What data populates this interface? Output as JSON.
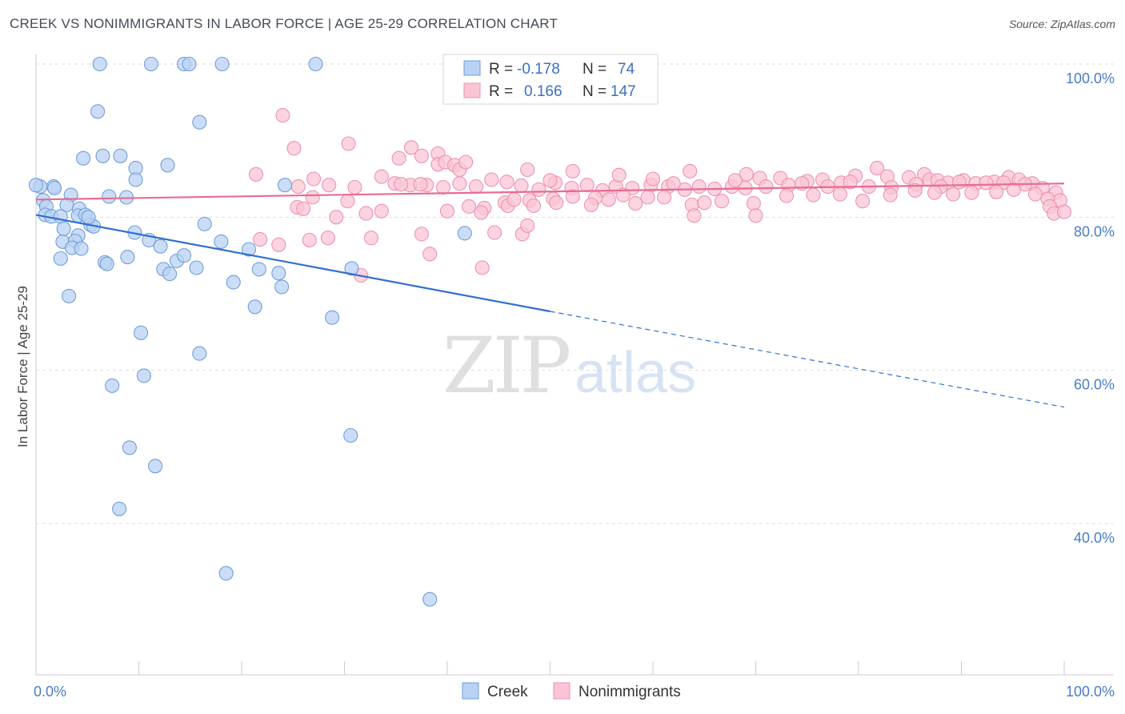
{
  "title": "CREEK VS NONIMMIGRANTS IN LABOR FORCE | AGE 25-29 CORRELATION CHART",
  "source": "Source: ZipAtlas.com",
  "watermark": {
    "zip": "ZIP",
    "atlas": "atlas"
  },
  "colors": {
    "creek_fill": "#b9d2f3",
    "creek_stroke": "#6f9fd8",
    "creek_line": "#2e6fd0",
    "non_fill": "#f9c5d5",
    "non_stroke": "#ee92ae",
    "non_line": "#e86b93",
    "axis_label": "#4a7cc9",
    "grid": "#dddddd"
  },
  "legend": {
    "creek": {
      "r_label": "R = ",
      "r_value": "-0.178",
      "n_label": "N = ",
      "n_value": "74"
    },
    "non": {
      "r_label": "R = ",
      "r_value": "0.166",
      "n_label": "N = ",
      "n_value": "147"
    }
  },
  "bottom_legend": {
    "creek": "Creek",
    "non": "Nonimmigrants"
  },
  "chart_data": {
    "type": "scatter",
    "title": "CREEK VS NONIMMIGRANTS IN LABOR FORCE | AGE 25-29 CORRELATION CHART",
    "xlabel": "",
    "ylabel": "In Labor Force | Age 25-29",
    "xlim": [
      0,
      100
    ],
    "ylim": [
      20,
      102
    ],
    "x_tick_labels": [
      {
        "value": 0,
        "label": "0.0%"
      },
      {
        "value": 100,
        "label": "100.0%"
      }
    ],
    "y_tick_labels": [
      {
        "value": 100,
        "label": "100.0%"
      },
      {
        "value": 80,
        "label": "80.0%"
      },
      {
        "value": 60,
        "label": "60.0%"
      },
      {
        "value": 40,
        "label": "40.0%"
      }
    ],
    "grid": true,
    "legend_position": "top-center",
    "series": [
      {
        "name": "Creek",
        "trend": {
          "x0": 0,
          "y0": 80.3,
          "x1": 50,
          "y1": 67.7,
          "dashed_to_x": 100,
          "dashed_to_y": 55.2
        },
        "points": [
          [
            6.2,
            100
          ],
          [
            11.2,
            100
          ],
          [
            14.4,
            100
          ],
          [
            14.9,
            100
          ],
          [
            18.1,
            100
          ],
          [
            27.2,
            100
          ],
          [
            6.0,
            93.8
          ],
          [
            15.9,
            92.4
          ],
          [
            4.6,
            87.7
          ],
          [
            6.5,
            88.0
          ],
          [
            8.2,
            88.0
          ],
          [
            12.8,
            86.8
          ],
          [
            9.7,
            86.4
          ],
          [
            9.7,
            84.9
          ],
          [
            0.4,
            84.0
          ],
          [
            1.7,
            84.0
          ],
          [
            1.8,
            83.8
          ],
          [
            3.4,
            82.9
          ],
          [
            7.1,
            82.7
          ],
          [
            8.8,
            82.6
          ],
          [
            24.2,
            84.2
          ],
          [
            0.7,
            82.2
          ],
          [
            1.0,
            81.4
          ],
          [
            3.0,
            81.6
          ],
          [
            4.2,
            81.1
          ],
          [
            0.9,
            80.3
          ],
          [
            1.5,
            80.1
          ],
          [
            2.4,
            80.1
          ],
          [
            4.1,
            80.2
          ],
          [
            4.8,
            80.3
          ],
          [
            5.3,
            79.0
          ],
          [
            5.6,
            78.8
          ],
          [
            16.4,
            79.1
          ],
          [
            41.7,
            77.9
          ],
          [
            4.1,
            77.6
          ],
          [
            2.6,
            76.8
          ],
          [
            3.8,
            76.9
          ],
          [
            11.0,
            77.0
          ],
          [
            3.5,
            76.0
          ],
          [
            4.4,
            75.9
          ],
          [
            20.7,
            75.8
          ],
          [
            2.4,
            74.6
          ],
          [
            6.7,
            74.1
          ],
          [
            8.9,
            74.8
          ],
          [
            12.4,
            73.2
          ],
          [
            13.7,
            74.3
          ],
          [
            14.4,
            75.0
          ],
          [
            15.6,
            73.4
          ],
          [
            6.9,
            73.9
          ],
          [
            13.0,
            72.6
          ],
          [
            21.7,
            73.2
          ],
          [
            23.6,
            72.7
          ],
          [
            30.7,
            73.3
          ],
          [
            19.2,
            71.5
          ],
          [
            23.9,
            70.9
          ],
          [
            3.2,
            69.7
          ],
          [
            21.3,
            68.3
          ],
          [
            28.8,
            66.9
          ],
          [
            10.2,
            64.9
          ],
          [
            15.9,
            62.2
          ],
          [
            10.5,
            59.3
          ],
          [
            7.4,
            58.0
          ],
          [
            30.6,
            51.5
          ],
          [
            9.1,
            49.9
          ],
          [
            11.6,
            47.5
          ],
          [
            8.1,
            41.9
          ],
          [
            18.5,
            33.5
          ],
          [
            38.3,
            30.1
          ],
          [
            0.0,
            84.2
          ],
          [
            5.1,
            80.0
          ],
          [
            9.6,
            78.0
          ],
          [
            12.1,
            76.2
          ],
          [
            2.7,
            78.5
          ],
          [
            18.0,
            76.8
          ]
        ]
      },
      {
        "name": "Nonimmigrants",
        "trend": {
          "x0": 0,
          "y0": 82.3,
          "x1": 100,
          "y1": 84.4
        },
        "points": [
          [
            24.0,
            93.3
          ],
          [
            25.1,
            89.0
          ],
          [
            30.4,
            89.6
          ],
          [
            35.3,
            87.7
          ],
          [
            36.5,
            89.1
          ],
          [
            37.5,
            88.0
          ],
          [
            39.1,
            88.3
          ],
          [
            39.1,
            86.9
          ],
          [
            39.8,
            87.2
          ],
          [
            40.7,
            86.8
          ],
          [
            41.2,
            86.2
          ],
          [
            41.8,
            87.2
          ],
          [
            47.8,
            86.2
          ],
          [
            52.2,
            86.0
          ],
          [
            63.6,
            86.0
          ],
          [
            69.1,
            85.6
          ],
          [
            70.4,
            85.1
          ],
          [
            81.8,
            86.4
          ],
          [
            86.4,
            85.6
          ],
          [
            94.6,
            85.2
          ],
          [
            82.8,
            85.3
          ],
          [
            79.7,
            85.4
          ],
          [
            84.9,
            85.2
          ],
          [
            72.4,
            85.1
          ],
          [
            75.0,
            84.7
          ],
          [
            76.5,
            84.9
          ],
          [
            78.3,
            84.5
          ],
          [
            86.9,
            84.9
          ],
          [
            87.7,
            84.8
          ],
          [
            88.7,
            84.5
          ],
          [
            90.2,
            84.8
          ],
          [
            91.4,
            84.4
          ],
          [
            93.2,
            84.6
          ],
          [
            95.6,
            84.9
          ],
          [
            96.9,
            84.4
          ],
          [
            97.9,
            83.8
          ],
          [
            99.2,
            83.2
          ],
          [
            99.6,
            82.2
          ],
          [
            98.4,
            82.4
          ],
          [
            96.2,
            84.3
          ],
          [
            94.1,
            84.5
          ],
          [
            92.4,
            84.5
          ],
          [
            89.8,
            84.6
          ],
          [
            88.0,
            84.0
          ],
          [
            85.6,
            84.3
          ],
          [
            83.2,
            83.9
          ],
          [
            81.0,
            84.0
          ],
          [
            79.2,
            84.6
          ],
          [
            77.0,
            84.0
          ],
          [
            74.5,
            84.4
          ],
          [
            73.2,
            84.2
          ],
          [
            71.0,
            84.0
          ],
          [
            69.0,
            83.8
          ],
          [
            67.7,
            84.0
          ],
          [
            66.0,
            83.7
          ],
          [
            64.5,
            84.0
          ],
          [
            63.1,
            83.6
          ],
          [
            61.5,
            84.0
          ],
          [
            59.8,
            84.2
          ],
          [
            58.0,
            83.8
          ],
          [
            56.4,
            84.0
          ],
          [
            55.1,
            83.5
          ],
          [
            53.6,
            84.2
          ],
          [
            52.1,
            83.8
          ],
          [
            50.5,
            84.5
          ],
          [
            48.9,
            83.6
          ],
          [
            47.2,
            84.1
          ],
          [
            45.8,
            84.6
          ],
          [
            44.3,
            84.9
          ],
          [
            42.8,
            84.0
          ],
          [
            41.2,
            84.4
          ],
          [
            39.6,
            83.9
          ],
          [
            38.0,
            84.2
          ],
          [
            36.4,
            84.2
          ],
          [
            34.9,
            84.4
          ],
          [
            33.6,
            85.3
          ],
          [
            31.0,
            83.9
          ],
          [
            28.5,
            84.2
          ],
          [
            27.0,
            85.0
          ],
          [
            25.5,
            84.0
          ],
          [
            59.5,
            82.6
          ],
          [
            57.1,
            82.9
          ],
          [
            54.4,
            82.5
          ],
          [
            52.2,
            82.7
          ],
          [
            50.3,
            82.4
          ],
          [
            48.0,
            82.2
          ],
          [
            45.6,
            81.9
          ],
          [
            43.6,
            81.2
          ],
          [
            45.9,
            81.5
          ],
          [
            46.5,
            82.3
          ],
          [
            48.4,
            81.5
          ],
          [
            50.6,
            81.9
          ],
          [
            54.0,
            81.6
          ],
          [
            55.7,
            82.3
          ],
          [
            58.3,
            81.8
          ],
          [
            61.1,
            82.6
          ],
          [
            63.8,
            81.6
          ],
          [
            65.0,
            81.9
          ],
          [
            66.7,
            82.1
          ],
          [
            69.8,
            81.8
          ],
          [
            73.0,
            82.8
          ],
          [
            75.6,
            82.9
          ],
          [
            78.2,
            83.0
          ],
          [
            80.4,
            82.1
          ],
          [
            83.1,
            82.9
          ],
          [
            85.5,
            83.5
          ],
          [
            87.4,
            83.2
          ],
          [
            89.2,
            83.0
          ],
          [
            91.0,
            83.2
          ],
          [
            93.4,
            83.3
          ],
          [
            95.1,
            83.6
          ],
          [
            97.2,
            83.0
          ],
          [
            98.6,
            81.4
          ],
          [
            99.0,
            80.5
          ],
          [
            100.0,
            80.7
          ],
          [
            64.0,
            80.2
          ],
          [
            70.0,
            80.2
          ],
          [
            25.4,
            81.3
          ],
          [
            26.0,
            81.1
          ],
          [
            29.2,
            80.0
          ],
          [
            32.1,
            80.5
          ],
          [
            33.6,
            80.8
          ],
          [
            30.3,
            82.1
          ],
          [
            26.9,
            82.6
          ],
          [
            40.0,
            80.8
          ],
          [
            43.3,
            80.6
          ],
          [
            42.1,
            81.4
          ],
          [
            35.5,
            84.3
          ],
          [
            37.4,
            84.3
          ],
          [
            28.4,
            77.3
          ],
          [
            23.6,
            76.4
          ],
          [
            21.8,
            77.1
          ],
          [
            26.6,
            77.0
          ],
          [
            32.6,
            77.3
          ],
          [
            37.5,
            77.8
          ],
          [
            44.6,
            78.0
          ],
          [
            47.3,
            77.8
          ],
          [
            47.8,
            78.9
          ],
          [
            38.3,
            75.2
          ],
          [
            43.4,
            73.4
          ],
          [
            31.6,
            72.4
          ],
          [
            21.4,
            85.6
          ],
          [
            50.0,
            84.8
          ],
          [
            56.7,
            85.5
          ],
          [
            60.0,
            85.0
          ],
          [
            62.0,
            84.4
          ],
          [
            68.0,
            84.8
          ]
        ]
      }
    ]
  }
}
